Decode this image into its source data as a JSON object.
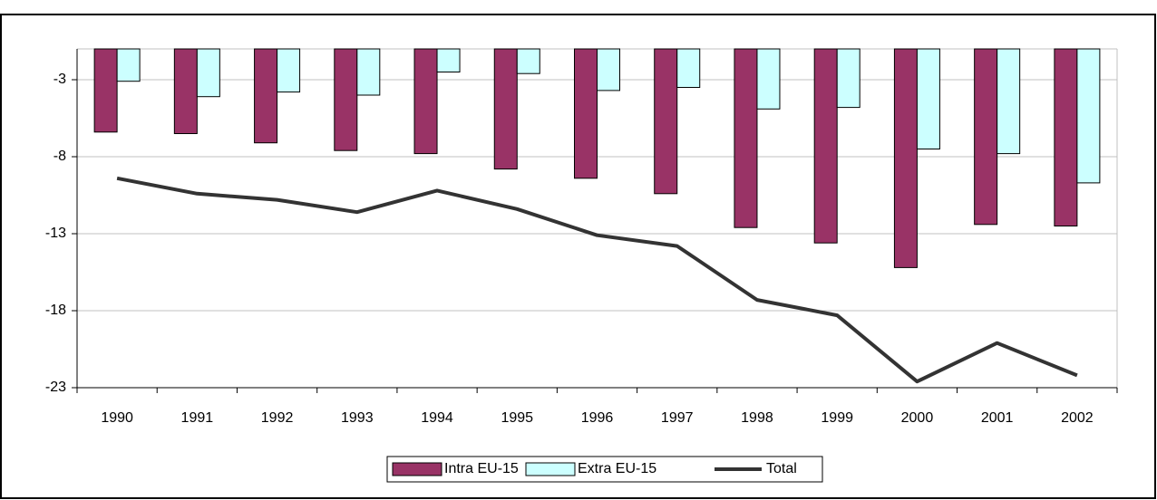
{
  "chart_data": {
    "type": "bar_line",
    "categories": [
      "1990",
      "1991",
      "1992",
      "1993",
      "1994",
      "1995",
      "1996",
      "1997",
      "1998",
      "1999",
      "2000",
      "2001",
      "2002"
    ],
    "series": [
      {
        "name": "Intra EU-15",
        "type": "bar",
        "color": "#993366",
        "values": [
          -6.4,
          -6.5,
          -7.1,
          -7.6,
          -7.8,
          -8.8,
          -9.4,
          -10.4,
          -12.6,
          -13.6,
          -15.2,
          -12.4,
          -12.5
        ]
      },
      {
        "name": "Extra EU-15",
        "type": "bar",
        "color": "#ccffff",
        "values": [
          -3.1,
          -4.1,
          -3.8,
          -4.0,
          -2.5,
          -2.6,
          -3.7,
          -3.5,
          -4.9,
          -4.8,
          -7.5,
          -7.8,
          -9.7
        ]
      },
      {
        "name": "Total",
        "type": "line",
        "color": "#333333",
        "values": [
          -9.4,
          -10.4,
          -10.8,
          -11.6,
          -10.2,
          -11.4,
          -13.1,
          -13.8,
          -17.3,
          -18.3,
          -22.6,
          -20.1,
          -22.2
        ]
      }
    ],
    "ylim": [
      -23,
      -1
    ],
    "yticks": [
      -3,
      -8,
      -13,
      -18,
      -23
    ],
    "grid": true,
    "legend": "bottom"
  }
}
